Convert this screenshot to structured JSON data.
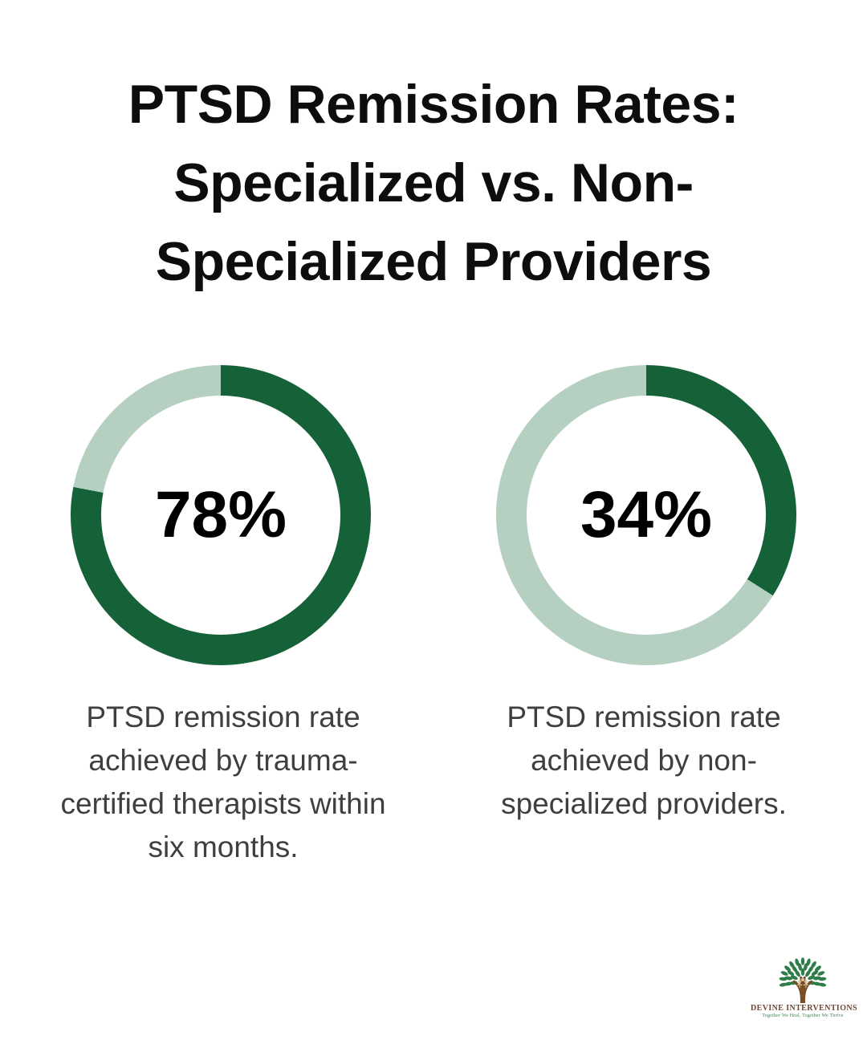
{
  "page": {
    "background": "#ffffff"
  },
  "title": {
    "full": "PTSD Remission Rates: Specialized vs. Non-Specialized Providers",
    "lines": [
      "PTSD Remission Rates:",
      "Specialized vs. Non-",
      "Specialized Providers"
    ]
  },
  "chart_data": [
    {
      "type": "pie",
      "variant": "donut",
      "value": 78,
      "remainder": 22,
      "label": "78%",
      "start_angle_deg": 0,
      "direction": "clockwise",
      "filled_color": "#156239",
      "track_color": "#B5CFC0",
      "caption": "PTSD remission rate achieved by trauma-certified therapists within six months.",
      "caption_lines": [
        "PTSD remission rate",
        "achieved by trauma-",
        "certified therapists within",
        "six months."
      ]
    },
    {
      "type": "pie",
      "variant": "donut",
      "value": 34,
      "remainder": 66,
      "label": "34%",
      "start_angle_deg": 0,
      "direction": "clockwise",
      "filled_color": "#156239",
      "track_color": "#B5CFC0",
      "caption": "PTSD remission rate achieved by non-specialized providers.",
      "caption_lines": [
        "PTSD remission rate",
        "achieved by non-",
        "specialized providers."
      ]
    }
  ],
  "colors": {
    "title_text": "#0d0d0d",
    "percent_text": "#000000",
    "caption_text": "#3f3f3f",
    "dark_green": "#156239",
    "light_green": "#B5CFC0"
  },
  "logo": {
    "icon": "tree-icon",
    "name": "DEVINE INTERVENTIONS",
    "tagline": "Together We Heal, Together We Thrive",
    "name_color": "#6f4836",
    "tagline_color": "#3e7d4e",
    "leaf_color": "#2e7d49",
    "trunk_color": "#7a4e26",
    "figure_color": "#d9c49a"
  }
}
